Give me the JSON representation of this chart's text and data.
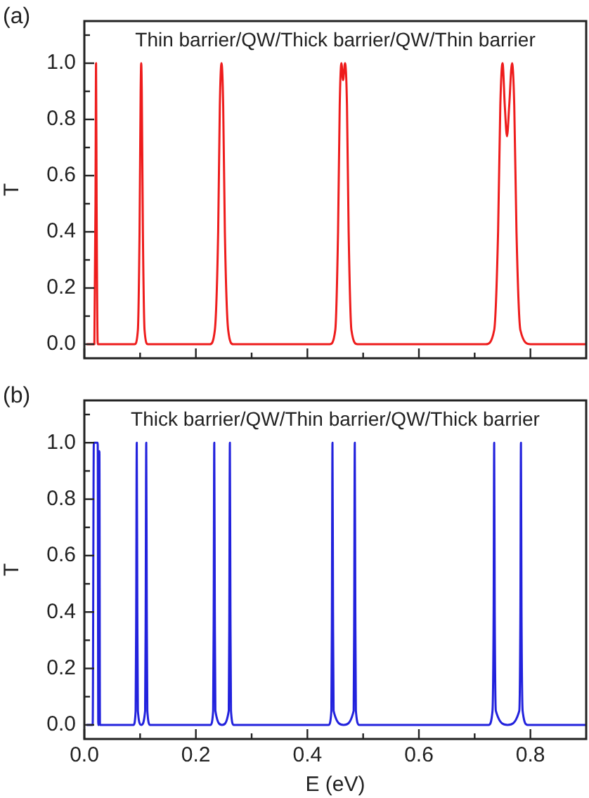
{
  "chart_data": [
    {
      "type": "line",
      "title": "Thin barrier/QW/Thick barrier/QW/Thin barrier",
      "ylabel": "T",
      "annotations": [
        "(a)"
      ],
      "tick_labels": "y",
      "xlim": [
        0,
        0.9
      ],
      "ylim": [
        -0.05,
        1.15
      ],
      "xticks": [
        0,
        {
          "value": 0.1,
          "label": null
        },
        0.2,
        {
          "value": 0.3,
          "label": null
        },
        0.4,
        {
          "value": 0.5,
          "label": null
        },
        0.6,
        {
          "value": 0.7,
          "label": null
        },
        0.8
      ],
      "yticks": [
        {
          "value": 0,
          "label": "0.0"
        },
        {
          "value": 0.1,
          "label": null
        },
        0.2,
        {
          "value": 0.3,
          "label": null
        },
        0.4,
        {
          "value": 0.5,
          "label": null
        },
        0.6,
        {
          "value": 0.7,
          "label": null
        },
        0.8,
        {
          "value": 0.9,
          "label": null
        },
        {
          "value": 1,
          "label": "1.0"
        },
        {
          "value": 1.1,
          "label": null
        }
      ],
      "legend": false,
      "grid": false,
      "marker": "none",
      "line_style": "solid",
      "series": [
        {
          "color": "#ee1c1c",
          "x": [
            0.004,
            0.018,
            0.02,
            0.021,
            0.022,
            0.024,
            0.09,
            0.096,
            0.099,
            0.101,
            0.102,
            0.103,
            0.105,
            0.108,
            0.114,
            0.225,
            0.234,
            0.24,
            0.243,
            0.246,
            0.249,
            0.252,
            0.258,
            0.267,
            0.44,
            0.45,
            0.455,
            0.458,
            0.461,
            0.464,
            0.4675,
            0.471,
            0.474,
            0.479,
            0.49,
            0.72,
            0.735,
            0.742,
            0.746,
            0.75,
            0.754,
            0.758,
            0.762,
            0.767,
            0.771,
            0.775,
            0.782,
            0.8,
            0.9
          ],
          "values": [
            0,
            0,
            0.5,
            1,
            0.5,
            0,
            0,
            0.05,
            0.4,
            0.9,
            1,
            0.9,
            0.4,
            0.05,
            0,
            0,
            0.05,
            0.4,
            0.85,
            1,
            0.85,
            0.4,
            0.05,
            0,
            0,
            0.05,
            0.4,
            0.85,
            1,
            0.94,
            1,
            0.85,
            0.4,
            0.05,
            0,
            0,
            0.05,
            0.4,
            0.85,
            1,
            0.85,
            0.74,
            0.85,
            1,
            0.85,
            0.4,
            0.05,
            0,
            0
          ]
        }
      ]
    },
    {
      "type": "line",
      "title": "Thick barrier/QW/Thin barrier/QW/Thick barrier",
      "xlabel": "E (eV)",
      "ylabel": "T",
      "annotations": [
        "(b)"
      ],
      "xlim": [
        0,
        0.9
      ],
      "ylim": [
        -0.05,
        1.15
      ],
      "xticks": [
        {
          "value": 0,
          "label": "0.0"
        },
        {
          "value": 0.1,
          "label": null
        },
        0.2,
        {
          "value": 0.3,
          "label": null
        },
        0.4,
        {
          "value": 0.5,
          "label": null
        },
        0.6,
        {
          "value": 0.7,
          "label": null
        },
        0.8
      ],
      "yticks": [
        {
          "value": 0,
          "label": "0.0"
        },
        {
          "value": 0.1,
          "label": null
        },
        0.2,
        {
          "value": 0.3,
          "label": null
        },
        0.4,
        {
          "value": 0.5,
          "label": null
        },
        0.6,
        {
          "value": 0.7,
          "label": null
        },
        0.8,
        {
          "value": 0.9,
          "label": null
        },
        {
          "value": 1,
          "label": "1.0"
        },
        {
          "value": 1.1,
          "label": null
        }
      ],
      "legend": false,
      "grid": false,
      "marker": "none",
      "line_style": "solid",
      "series": [
        {
          "color": "#2222dd",
          "x": [
            0.004,
            0.015,
            0.017,
            0.024,
            0.025,
            0.026,
            0.027,
            0.028,
            0.088,
            0.092,
            0.093,
            0.094,
            0.095,
            0.096,
            0.102,
            0.109,
            0.11,
            0.111,
            0.112,
            0.113,
            0.118,
            0.226,
            0.231,
            0.232,
            0.233,
            0.234,
            0.235,
            0.247,
            0.259,
            0.26,
            0.261,
            0.262,
            0.263,
            0.268,
            0.438,
            0.443,
            0.444,
            0.445,
            0.446,
            0.447,
            0.465,
            0.483,
            0.484,
            0.485,
            0.486,
            0.487,
            0.493,
            0.725,
            0.732,
            0.734,
            0.735,
            0.736,
            0.738,
            0.759,
            0.78,
            0.782,
            0.783,
            0.784,
            0.786,
            0.795,
            0.9
          ],
          "values": [
            0,
            0,
            1,
            1,
            0,
            0,
            0.97,
            0,
            0,
            0.05,
            0.4,
            1,
            0.4,
            0.05,
            0,
            0.05,
            0.4,
            1,
            0.4,
            0.05,
            0,
            0,
            0.05,
            0.4,
            1,
            0.4,
            0.05,
            0,
            0.05,
            0.4,
            1,
            0.4,
            0.05,
            0,
            0,
            0.05,
            0.4,
            1,
            0.4,
            0.05,
            0,
            0.05,
            0.4,
            1,
            0.4,
            0.05,
            0,
            0,
            0.05,
            0.4,
            1,
            0.4,
            0.05,
            0,
            0.05,
            0.4,
            1,
            0.4,
            0.05,
            0,
            0
          ]
        }
      ]
    }
  ]
}
